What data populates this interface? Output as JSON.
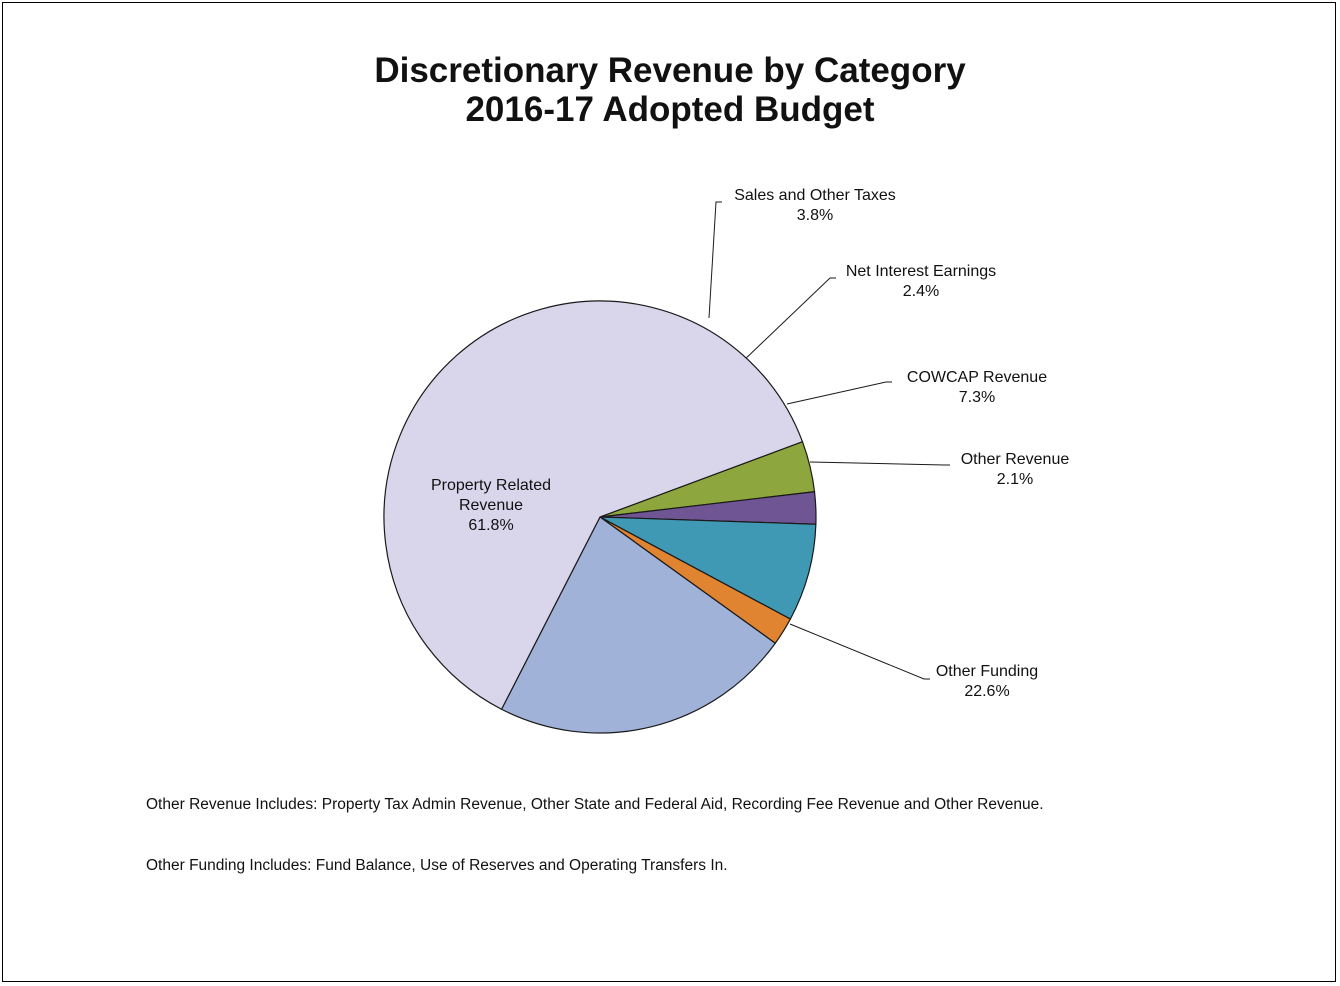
{
  "colors": {
    "property_related_revenue": "#d9d6ec",
    "sales_and_other_taxes": "#8da63e",
    "net_interest_earnings": "#6f5594",
    "cowcap_revenue": "#3f98b4",
    "other_revenue": "#e08431",
    "other_funding": "#a1b2d9"
  },
  "chart_data": {
    "type": "pie",
    "title": "Discretionary Revenue by Category",
    "subtitle": "2016-17 Adopted Budget",
    "slices": [
      {
        "key": "sales_and_other_taxes",
        "label": "Sales and Other Taxes",
        "value": 3.8,
        "value_label": "3.8%"
      },
      {
        "key": "net_interest_earnings",
        "label": "Net Interest Earnings",
        "value": 2.4,
        "value_label": "2.4%"
      },
      {
        "key": "cowcap_revenue",
        "label": "COWCAP Revenue",
        "value": 7.3,
        "value_label": "7.3%"
      },
      {
        "key": "other_revenue",
        "label": "Other Revenue",
        "value": 2.1,
        "value_label": "2.1%"
      },
      {
        "key": "other_funding",
        "label": "Other Funding",
        "value": 22.6,
        "value_label": "22.6%"
      },
      {
        "key": "property_related_revenue",
        "label": "Property Related Revenue",
        "label_lines": [
          "Property Related",
          "Revenue"
        ],
        "value": 61.8,
        "value_label": "61.8%"
      }
    ]
  },
  "notes": {
    "other_revenue_includes": "Other Revenue Includes:  Property Tax Admin Revenue, Other State and Federal Aid, Recording Fee Revenue and Other Revenue.",
    "other_funding_includes": "Other Funding Includes:  Fund Balance, Use of Reserves and Operating Transfers In."
  }
}
